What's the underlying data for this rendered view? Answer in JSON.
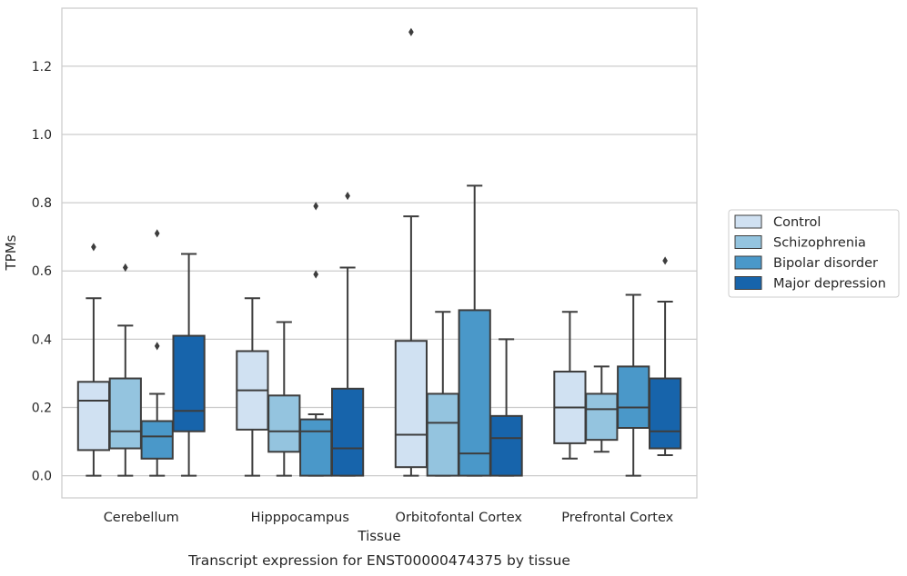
{
  "caption": "Transcript expression for ENST00000474375 by tissue",
  "chart_data": {
    "type": "boxplot",
    "xlabel": "Tissue",
    "ylabel": "TPMs",
    "ylim": [
      -0.065,
      1.37
    ],
    "yticks": [
      0.0,
      0.2,
      0.4,
      0.6,
      0.8,
      1.0,
      1.2
    ],
    "ytick_labels": [
      "0.0",
      "0.2",
      "0.4",
      "0.6",
      "0.8",
      "1.0",
      "1.2"
    ],
    "grid": "horizontal",
    "legend_position": "right",
    "categories": [
      "Cerebellum",
      "Hipppocampus",
      "Orbitofontal Cortex",
      "Prefrontal Cortex"
    ],
    "series": [
      {
        "name": "Control",
        "color": "#d0e1f2",
        "boxes": [
          {
            "whislo": 0.0,
            "q1": 0.075,
            "med": 0.22,
            "q3": 0.275,
            "whishi": 0.52,
            "fliers": [
              0.67
            ]
          },
          {
            "whislo": 0.0,
            "q1": 0.135,
            "med": 0.25,
            "q3": 0.365,
            "whishi": 0.52,
            "fliers": []
          },
          {
            "whislo": 0.0,
            "q1": 0.025,
            "med": 0.12,
            "q3": 0.395,
            "whishi": 0.76,
            "fliers": [
              1.3
            ]
          },
          {
            "whislo": 0.05,
            "q1": 0.095,
            "med": 0.2,
            "q3": 0.305,
            "whishi": 0.48,
            "fliers": []
          }
        ]
      },
      {
        "name": "Schizophrenia",
        "color": "#94c4df",
        "boxes": [
          {
            "whislo": 0.0,
            "q1": 0.08,
            "med": 0.13,
            "q3": 0.285,
            "whishi": 0.44,
            "fliers": [
              0.61
            ]
          },
          {
            "whislo": 0.0,
            "q1": 0.07,
            "med": 0.13,
            "q3": 0.235,
            "whishi": 0.45,
            "fliers": []
          },
          {
            "whislo": 0.0,
            "q1": 0.0,
            "med": 0.155,
            "q3": 0.24,
            "whishi": 0.48,
            "fliers": []
          },
          {
            "whislo": 0.07,
            "q1": 0.105,
            "med": 0.195,
            "q3": 0.24,
            "whishi": 0.32,
            "fliers": []
          }
        ]
      },
      {
        "name": "Bipolar disorder",
        "color": "#4a98c9",
        "boxes": [
          {
            "whislo": 0.0,
            "q1": 0.05,
            "med": 0.115,
            "q3": 0.16,
            "whishi": 0.24,
            "fliers": [
              0.38,
              0.71
            ]
          },
          {
            "whislo": 0.0,
            "q1": 0.0,
            "med": 0.13,
            "q3": 0.165,
            "whishi": 0.18,
            "fliers": [
              0.59,
              0.79
            ]
          },
          {
            "whislo": 0.0,
            "q1": 0.0,
            "med": 0.065,
            "q3": 0.485,
            "whishi": 0.85,
            "fliers": []
          },
          {
            "whislo": 0.0,
            "q1": 0.14,
            "med": 0.2,
            "q3": 0.32,
            "whishi": 0.53,
            "fliers": []
          }
        ]
      },
      {
        "name": "Major depression",
        "color": "#1764ab",
        "boxes": [
          {
            "whislo": 0.0,
            "q1": 0.13,
            "med": 0.19,
            "q3": 0.41,
            "whishi": 0.65,
            "fliers": []
          },
          {
            "whislo": 0.0,
            "q1": 0.0,
            "med": 0.08,
            "q3": 0.255,
            "whishi": 0.61,
            "fliers": [
              0.82
            ]
          },
          {
            "whislo": 0.0,
            "q1": 0.0,
            "med": 0.11,
            "q3": 0.175,
            "whishi": 0.4,
            "fliers": []
          },
          {
            "whislo": 0.06,
            "q1": 0.08,
            "med": 0.13,
            "q3": 0.285,
            "whishi": 0.51,
            "fliers": [
              0.63
            ]
          }
        ]
      }
    ]
  }
}
